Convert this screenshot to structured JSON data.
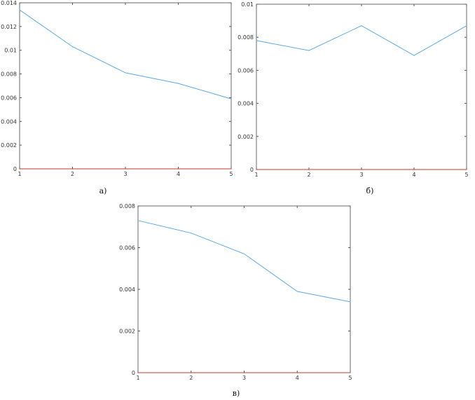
{
  "colors": {
    "line": "#5aa9e6",
    "zero_line": "#c0392b",
    "frame": "#6a6a6a",
    "tick": "#555555"
  },
  "chart_data": [
    {
      "type": "line",
      "caption": "а)",
      "x": [
        1,
        2,
        3,
        4,
        5
      ],
      "xlim": [
        1,
        5
      ],
      "ylim": [
        0,
        0.014
      ],
      "xticks": [
        "1",
        "2",
        "3",
        "4",
        "5"
      ],
      "yticks": [
        {
          "value": 0,
          "label": "0"
        },
        {
          "value": 0.002,
          "label": "0.002"
        },
        {
          "value": 0.004,
          "label": "0.004"
        },
        {
          "value": 0.006,
          "label": "0.006"
        },
        {
          "value": 0.008,
          "label": "0.008"
        },
        {
          "value": 0.01,
          "label": "0.01"
        },
        {
          "value": 0.012,
          "label": "0.012"
        },
        {
          "value": 0.014,
          "label": "0.014"
        }
      ],
      "series": [
        {
          "values": [
            0.0134,
            0.0103,
            0.0081,
            0.0072,
            0.0059
          ]
        },
        {
          "values": [
            0,
            0,
            0,
            0,
            0
          ]
        }
      ],
      "grid": false
    },
    {
      "type": "line",
      "caption": "б)",
      "x": [
        1,
        2,
        3,
        4,
        5
      ],
      "xlim": [
        1,
        5
      ],
      "ylim": [
        0,
        0.01
      ],
      "xticks": [
        "1",
        "2",
        "3",
        "4",
        "5"
      ],
      "yticks": [
        {
          "value": 0,
          "label": "0"
        },
        {
          "value": 0.002,
          "label": "0.002"
        },
        {
          "value": 0.004,
          "label": "0.004"
        },
        {
          "value": 0.006,
          "label": "0.006"
        },
        {
          "value": 0.008,
          "label": "0.008"
        },
        {
          "value": 0.01,
          "label": "0.01"
        }
      ],
      "series": [
        {
          "values": [
            0.0078,
            0.0072,
            0.0087,
            0.0069,
            0.0087
          ]
        },
        {
          "values": [
            0,
            0,
            0,
            0,
            0
          ]
        }
      ],
      "grid": false
    },
    {
      "type": "line",
      "caption": "в)",
      "x": [
        1,
        2,
        3,
        4,
        5
      ],
      "xlim": [
        1,
        5
      ],
      "ylim": [
        0,
        0.008
      ],
      "xticks": [
        "1",
        "2",
        "3",
        "4",
        "5"
      ],
      "yticks": [
        {
          "value": 0,
          "label": "0"
        },
        {
          "value": 0.002,
          "label": "0.002"
        },
        {
          "value": 0.004,
          "label": "0.004"
        },
        {
          "value": 0.006,
          "label": "0.006"
        },
        {
          "value": 0.008,
          "label": "0.008"
        }
      ],
      "series": [
        {
          "values": [
            0.0073,
            0.0067,
            0.0057,
            0.0039,
            0.0034
          ]
        },
        {
          "values": [
            0,
            0,
            0,
            0,
            0
          ]
        }
      ],
      "grid": false
    }
  ]
}
